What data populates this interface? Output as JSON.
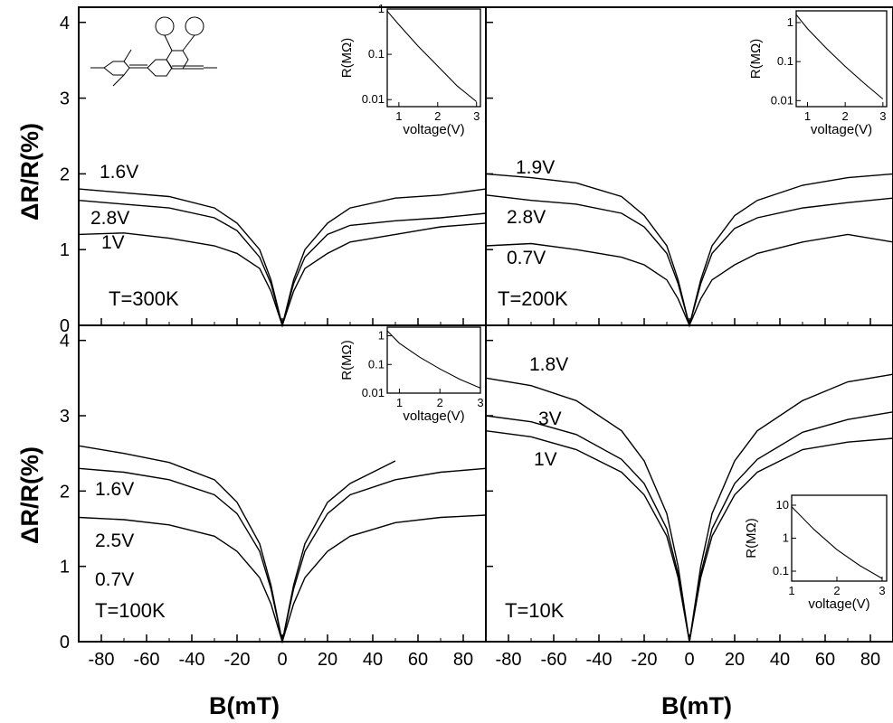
{
  "figure": {
    "y_label": "ΔR/R(%)",
    "x_label": "B(mT)"
  },
  "chart_data": [
    {
      "type": "line",
      "panel": "top-left",
      "temperature_label": "T=300K",
      "xlim": [
        -90,
        90
      ],
      "ylim": [
        0,
        4.2
      ],
      "x_ticks": [],
      "y_ticks": [
        0,
        1,
        2,
        3,
        4
      ],
      "series": [
        {
          "name": "1.6V",
          "x": [
            -90,
            -70,
            -50,
            -30,
            -20,
            -10,
            -5,
            0,
            5,
            10,
            20,
            30,
            50,
            70,
            90
          ],
          "y": [
            1.8,
            1.75,
            1.7,
            1.55,
            1.35,
            1.0,
            0.6,
            0,
            0.6,
            1.0,
            1.35,
            1.55,
            1.68,
            1.72,
            1.8
          ]
        },
        {
          "name": "2.8V",
          "x": [
            -90,
            -70,
            -50,
            -30,
            -20,
            -10,
            -5,
            0,
            5,
            10,
            20,
            30,
            50,
            70,
            90
          ],
          "y": [
            1.65,
            1.6,
            1.55,
            1.42,
            1.25,
            0.9,
            0.55,
            0,
            0.55,
            0.9,
            1.2,
            1.32,
            1.38,
            1.42,
            1.48
          ]
        },
        {
          "name": "1V",
          "x": [
            -90,
            -70,
            -50,
            -30,
            -20,
            -10,
            -5,
            0,
            5,
            10,
            20,
            30,
            50,
            70,
            90
          ],
          "y": [
            1.2,
            1.22,
            1.15,
            1.05,
            0.95,
            0.75,
            0.45,
            0,
            0.45,
            0.75,
            0.95,
            1.1,
            1.2,
            1.3,
            1.35
          ]
        }
      ],
      "inset": {
        "type": "line",
        "xlabel": "voltage(V)",
        "ylabel": "R(MΩ)",
        "yscale": "log",
        "xlim": [
          0.7,
          3.1
        ],
        "ylim": [
          0.007,
          1
        ],
        "x_ticks": [
          1,
          2,
          3
        ],
        "y_ticks": [
          0.01,
          0.1,
          1
        ],
        "x": [
          0.7,
          1.0,
          1.5,
          2.0,
          2.5,
          3.0
        ],
        "y": [
          0.9,
          0.45,
          0.15,
          0.055,
          0.02,
          0.009
        ]
      }
    },
    {
      "type": "line",
      "panel": "top-right",
      "temperature_label": "T=200K",
      "xlim": [
        -90,
        90
      ],
      "ylim": [
        0,
        4.2
      ],
      "x_ticks": [],
      "y_ticks": [],
      "series": [
        {
          "name": "1.9V",
          "x": [
            -90,
            -70,
            -50,
            -30,
            -20,
            -10,
            -5,
            0,
            5,
            10,
            20,
            30,
            50,
            70,
            90
          ],
          "y": [
            2.0,
            1.95,
            1.88,
            1.7,
            1.45,
            1.05,
            0.6,
            0,
            0.6,
            1.05,
            1.45,
            1.65,
            1.85,
            1.95,
            2.0
          ]
        },
        {
          "name": "2.8V",
          "x": [
            -90,
            -70,
            -50,
            -30,
            -20,
            -10,
            -5,
            0,
            5,
            10,
            20,
            30,
            50,
            70,
            90
          ],
          "y": [
            1.72,
            1.65,
            1.6,
            1.48,
            1.3,
            0.95,
            0.55,
            0,
            0.55,
            0.95,
            1.28,
            1.42,
            1.55,
            1.62,
            1.68
          ]
        },
        {
          "name": "0.7V",
          "x": [
            -90,
            -70,
            -50,
            -30,
            -20,
            -10,
            -5,
            0,
            5,
            10,
            20,
            30,
            50,
            70,
            90
          ],
          "y": [
            1.05,
            1.08,
            1.0,
            0.9,
            0.8,
            0.6,
            0.35,
            0,
            0.35,
            0.6,
            0.8,
            0.95,
            1.1,
            1.2,
            1.1
          ]
        }
      ],
      "inset": {
        "type": "line",
        "xlabel": "voltage(V)",
        "ylabel": "R(MΩ)",
        "yscale": "log",
        "xlim": [
          0.7,
          3.1
        ],
        "ylim": [
          0.007,
          2
        ],
        "x_ticks": [
          1,
          2,
          3
        ],
        "y_ticks": [
          0.01,
          0.1,
          1
        ],
        "x": [
          0.7,
          1.0,
          1.5,
          2.0,
          2.5,
          3.0
        ],
        "y": [
          1.6,
          0.7,
          0.22,
          0.075,
          0.028,
          0.011
        ]
      }
    },
    {
      "type": "line",
      "panel": "bottom-left",
      "temperature_label": "T=100K",
      "xlim": [
        -90,
        90
      ],
      "ylim": [
        0,
        4.2
      ],
      "x_ticks": [
        -80,
        -60,
        -40,
        -20,
        0,
        20,
        40,
        60,
        80
      ],
      "y_ticks": [
        0,
        1,
        2,
        3,
        4
      ],
      "series": [
        {
          "name": "1.6V",
          "x": [
            -90,
            -70,
            -50,
            -30,
            -20,
            -10,
            -5,
            0,
            5,
            10,
            20,
            30,
            40,
            50
          ],
          "y": [
            2.6,
            2.5,
            2.38,
            2.15,
            1.85,
            1.3,
            0.75,
            0,
            0.75,
            1.3,
            1.85,
            2.1,
            2.25,
            2.4
          ]
        },
        {
          "name": "2.5V",
          "x": [
            -90,
            -70,
            -50,
            -30,
            -20,
            -10,
            -5,
            0,
            5,
            10,
            20,
            30,
            50,
            70,
            90
          ],
          "y": [
            2.3,
            2.25,
            2.15,
            1.95,
            1.7,
            1.2,
            0.7,
            0,
            0.7,
            1.2,
            1.7,
            1.95,
            2.15,
            2.25,
            2.3
          ]
        },
        {
          "name": "0.7V",
          "x": [
            -90,
            -70,
            -50,
            -30,
            -20,
            -10,
            -5,
            0,
            5,
            10,
            20,
            30,
            50,
            70,
            90
          ],
          "y": [
            1.65,
            1.62,
            1.55,
            1.4,
            1.2,
            0.85,
            0.5,
            0,
            0.5,
            0.85,
            1.2,
            1.4,
            1.58,
            1.65,
            1.68
          ]
        }
      ],
      "inset": {
        "type": "line",
        "xlabel": "voltage(V)",
        "ylabel": "R(MΩ)",
        "yscale": "log",
        "xlim": [
          0.7,
          3.0
        ],
        "ylim": [
          0.01,
          2
        ],
        "x_ticks": [
          1,
          2,
          3
        ],
        "y_ticks": [
          0.01,
          0.1,
          1
        ],
        "x": [
          0.7,
          1.0,
          1.5,
          2.0,
          2.5,
          3.0
        ],
        "y": [
          1.5,
          0.55,
          0.18,
          0.07,
          0.03,
          0.015
        ]
      }
    },
    {
      "type": "line",
      "panel": "bottom-right",
      "temperature_label": "T=10K",
      "xlim": [
        -90,
        90
      ],
      "ylim": [
        0,
        4.2
      ],
      "x_ticks": [
        -80,
        -60,
        -40,
        -20,
        0,
        20,
        40,
        60,
        80
      ],
      "y_ticks": [],
      "series": [
        {
          "name": "1.8V",
          "x": [
            -90,
            -70,
            -50,
            -30,
            -20,
            -10,
            -5,
            0,
            5,
            10,
            20,
            30,
            50,
            70,
            90
          ],
          "y": [
            3.5,
            3.4,
            3.2,
            2.8,
            2.4,
            1.7,
            1.0,
            0,
            1.0,
            1.7,
            2.4,
            2.8,
            3.2,
            3.45,
            3.55
          ]
        },
        {
          "name": "3V",
          "x": [
            -90,
            -70,
            -50,
            -30,
            -20,
            -10,
            -5,
            0,
            5,
            10,
            20,
            30,
            50,
            70,
            90
          ],
          "y": [
            3.0,
            2.92,
            2.75,
            2.42,
            2.1,
            1.5,
            0.9,
            0,
            0.9,
            1.5,
            2.1,
            2.42,
            2.78,
            2.95,
            3.05
          ]
        },
        {
          "name": "1V",
          "x": [
            -90,
            -70,
            -50,
            -30,
            -20,
            -10,
            -5,
            0,
            5,
            10,
            20,
            30,
            50,
            70,
            90
          ],
          "y": [
            2.8,
            2.72,
            2.55,
            2.25,
            1.95,
            1.4,
            0.85,
            0,
            0.85,
            1.4,
            1.95,
            2.25,
            2.55,
            2.65,
            2.7
          ]
        }
      ],
      "inset": {
        "type": "line",
        "xlabel": "voltage(V)",
        "ylabel": "R(MΩ)",
        "yscale": "log",
        "xlim": [
          1.0,
          3.1
        ],
        "ylim": [
          0.05,
          20
        ],
        "x_ticks": [
          1,
          2,
          3
        ],
        "y_ticks": [
          0.1,
          1,
          10
        ],
        "x": [
          1.0,
          1.5,
          2.0,
          2.5,
          3.0
        ],
        "y": [
          9,
          1.8,
          0.45,
          0.15,
          0.06
        ]
      }
    }
  ]
}
